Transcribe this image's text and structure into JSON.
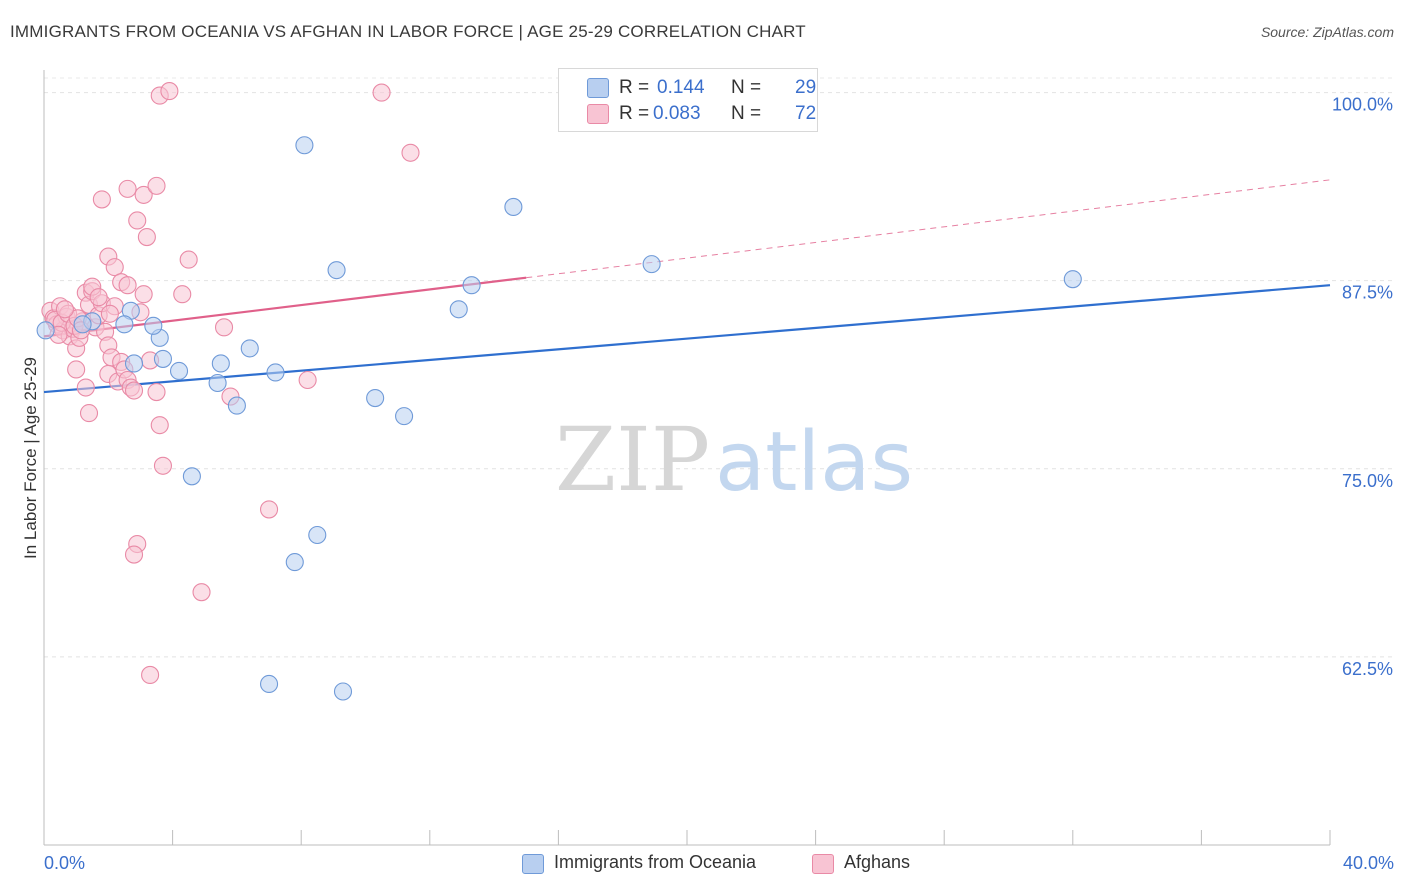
{
  "header": {
    "title": "IMMIGRANTS FROM OCEANIA VS AFGHAN IN LABOR FORCE | AGE 25-29 CORRELATION CHART",
    "source": "Source: ZipAtlas.com"
  },
  "legend": {
    "series1": {
      "r_label": "R =",
      "r_value": "0.144",
      "n_label": "N =",
      "n_value": "29"
    },
    "series2": {
      "r_label": "R =",
      "r_value": "0.083",
      "n_label": "N =",
      "n_value": "72"
    }
  },
  "watermark": {
    "part1": "ZIP",
    "part2": "atlas"
  },
  "colors": {
    "blue_fill": "#b8cff0",
    "blue_stroke": "#6f9ad8",
    "blue_line": "#2f6fcf",
    "pink_fill": "#f8c4d3",
    "pink_stroke": "#e98aa6",
    "pink_line": "#e0608a",
    "tick_label": "#3b6fcc"
  },
  "chart_data": {
    "type": "scatter",
    "title": "IMMIGRANTS FROM OCEANIA VS AFGHAN IN LABOR FORCE | AGE 25-29 CORRELATION CHART",
    "xlabel": "",
    "ylabel": "In Labor Force | Age 25-29",
    "xlim": [
      0,
      40
    ],
    "ylim": [
      50,
      101.5
    ],
    "x_tick_labels": [
      "0.0%",
      "40.0%"
    ],
    "y_ticks": [
      62.5,
      75.0,
      87.5,
      100.0
    ],
    "y_tick_labels": [
      "62.5%",
      "75.0%",
      "87.5%",
      "100.0%"
    ],
    "grid": true,
    "series": [
      {
        "name": "Immigrants from Oceania",
        "r": 0.144,
        "n": 29,
        "trend": {
          "x0": 0,
          "y0": 80.1,
          "x1": 40,
          "y1": 87.2,
          "dashed_from": null
        },
        "points": [
          [
            0.05,
            84.2
          ],
          [
            1.5,
            84.8
          ],
          [
            2.7,
            85.5
          ],
          [
            2.5,
            84.6
          ],
          [
            2.8,
            82.0
          ],
          [
            3.6,
            83.7
          ],
          [
            3.4,
            84.5
          ],
          [
            3.7,
            82.3
          ],
          [
            4.2,
            81.5
          ],
          [
            5.4,
            80.7
          ],
          [
            5.5,
            82.0
          ],
          [
            6.0,
            79.2
          ],
          [
            6.4,
            83.0
          ],
          [
            7.2,
            81.4
          ],
          [
            8.1,
            96.5
          ],
          [
            9.1,
            88.2
          ],
          [
            10.3,
            79.7
          ],
          [
            11.2,
            78.5
          ],
          [
            12.9,
            85.6
          ],
          [
            13.3,
            87.2
          ],
          [
            14.6,
            92.4
          ],
          [
            18.9,
            88.6
          ],
          [
            32.0,
            87.6
          ],
          [
            4.6,
            74.5
          ],
          [
            8.5,
            70.6
          ],
          [
            7.8,
            68.8
          ],
          [
            7.0,
            60.7
          ],
          [
            9.3,
            60.2
          ],
          [
            1.2,
            84.6
          ]
        ]
      },
      {
        "name": "Afghans",
        "r": 0.083,
        "n": 72,
        "trend": {
          "x0": 0,
          "y0": 83.8,
          "x1": 40,
          "y1": 94.2,
          "dashed_from": 15.0
        },
        "points": [
          [
            0.2,
            85.5
          ],
          [
            0.3,
            85.0
          ],
          [
            0.4,
            84.6
          ],
          [
            0.5,
            85.8
          ],
          [
            0.6,
            84.2
          ],
          [
            0.7,
            85.1
          ],
          [
            0.8,
            83.8
          ],
          [
            0.9,
            84.3
          ],
          [
            1.0,
            83.0
          ],
          [
            1.1,
            83.7
          ],
          [
            1.2,
            84.8
          ],
          [
            1.3,
            86.7
          ],
          [
            1.4,
            85.9
          ],
          [
            1.5,
            86.8
          ],
          [
            1.6,
            84.4
          ],
          [
            1.7,
            85.2
          ],
          [
            1.8,
            86.0
          ],
          [
            1.9,
            84.1
          ],
          [
            2.0,
            83.2
          ],
          [
            2.1,
            82.4
          ],
          [
            2.2,
            85.8
          ],
          [
            1.5,
            87.1
          ],
          [
            1.7,
            86.4
          ],
          [
            2.0,
            81.3
          ],
          [
            2.3,
            80.8
          ],
          [
            2.4,
            82.1
          ],
          [
            2.5,
            81.6
          ],
          [
            2.6,
            80.9
          ],
          [
            2.7,
            80.4
          ],
          [
            2.8,
            80.2
          ],
          [
            3.0,
            85.4
          ],
          [
            3.1,
            86.6
          ],
          [
            3.3,
            82.2
          ],
          [
            3.5,
            80.1
          ],
          [
            3.6,
            77.9
          ],
          [
            3.7,
            75.2
          ],
          [
            1.0,
            81.6
          ],
          [
            1.3,
            80.4
          ],
          [
            1.4,
            78.7
          ],
          [
            2.0,
            89.1
          ],
          [
            2.2,
            88.4
          ],
          [
            2.4,
            87.4
          ],
          [
            2.6,
            87.2
          ],
          [
            2.9,
            91.5
          ],
          [
            3.2,
            90.4
          ],
          [
            1.8,
            92.9
          ],
          [
            2.6,
            93.6
          ],
          [
            3.1,
            93.2
          ],
          [
            3.5,
            93.8
          ],
          [
            3.6,
            99.8
          ],
          [
            3.9,
            100.1
          ],
          [
            4.5,
            88.9
          ],
          [
            4.3,
            86.6
          ],
          [
            5.6,
            84.4
          ],
          [
            5.8,
            79.8
          ],
          [
            7.0,
            72.3
          ],
          [
            8.2,
            80.9
          ],
          [
            10.5,
            100.0
          ],
          [
            11.4,
            96.0
          ],
          [
            2.9,
            70.0
          ],
          [
            2.8,
            69.3
          ],
          [
            4.9,
            66.8
          ],
          [
            3.3,
            61.3
          ],
          [
            0.35,
            84.9
          ],
          [
            0.55,
            84.7
          ],
          [
            0.75,
            85.3
          ],
          [
            0.95,
            84.5
          ],
          [
            1.05,
            85.0
          ],
          [
            1.15,
            84.2
          ],
          [
            0.45,
            83.9
          ],
          [
            0.65,
            85.6
          ],
          [
            2.05,
            85.3
          ]
        ]
      }
    ]
  },
  "axes": {
    "ylabel": "In Labor Force | Age 25-29",
    "x_left_label": "0.0%",
    "x_right_label": "40.0%"
  },
  "bottom_legend": {
    "series1_label": "Immigrants from Oceania",
    "series2_label": "Afghans"
  }
}
